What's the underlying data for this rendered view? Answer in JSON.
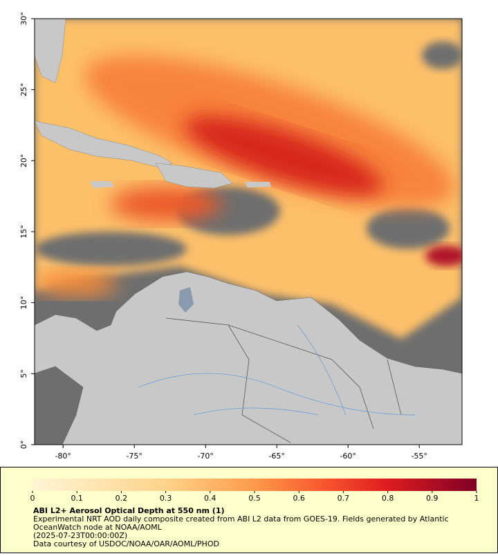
{
  "map": {
    "xlim": [
      -82,
      -52
    ],
    "ylim": [
      0,
      30
    ],
    "xticks": [
      {
        "value": -80,
        "label": "-80°"
      },
      {
        "value": -75,
        "label": "-75°"
      },
      {
        "value": -70,
        "label": "-70°"
      },
      {
        "value": -65,
        "label": "-65°"
      },
      {
        "value": -60,
        "label": "-60°"
      },
      {
        "value": -55,
        "label": "-55°"
      }
    ],
    "yticks": [
      {
        "value": 0,
        "label": "0°"
      },
      {
        "value": 5,
        "label": "5°"
      },
      {
        "value": 10,
        "label": "10°"
      },
      {
        "value": 15,
        "label": "15°"
      },
      {
        "value": 20,
        "label": "20°"
      },
      {
        "value": 25,
        "label": "25°"
      },
      {
        "value": 30,
        "label": "30°"
      }
    ]
  },
  "colorbar": {
    "lim": [
      0,
      1
    ],
    "ticks": [
      0,
      0.1,
      0.2,
      0.3,
      0.4,
      0.5,
      0.6,
      0.7,
      0.8,
      0.9,
      1
    ]
  },
  "caption": {
    "title": "ABI L2+ Aerosol Optical Depth at 550 nm (1)",
    "lines": [
      "Experimental NRT AOD daily composite created from ABI L2 data from GOES-19. Fields generated by Atlantic",
      "OceanWatch node at NOAA/AOML",
      "(2025-07-23T00:00:00Z)",
      "Data courtesy of USDOC/NOAA/OAR/AOML/PHOD"
    ]
  }
}
